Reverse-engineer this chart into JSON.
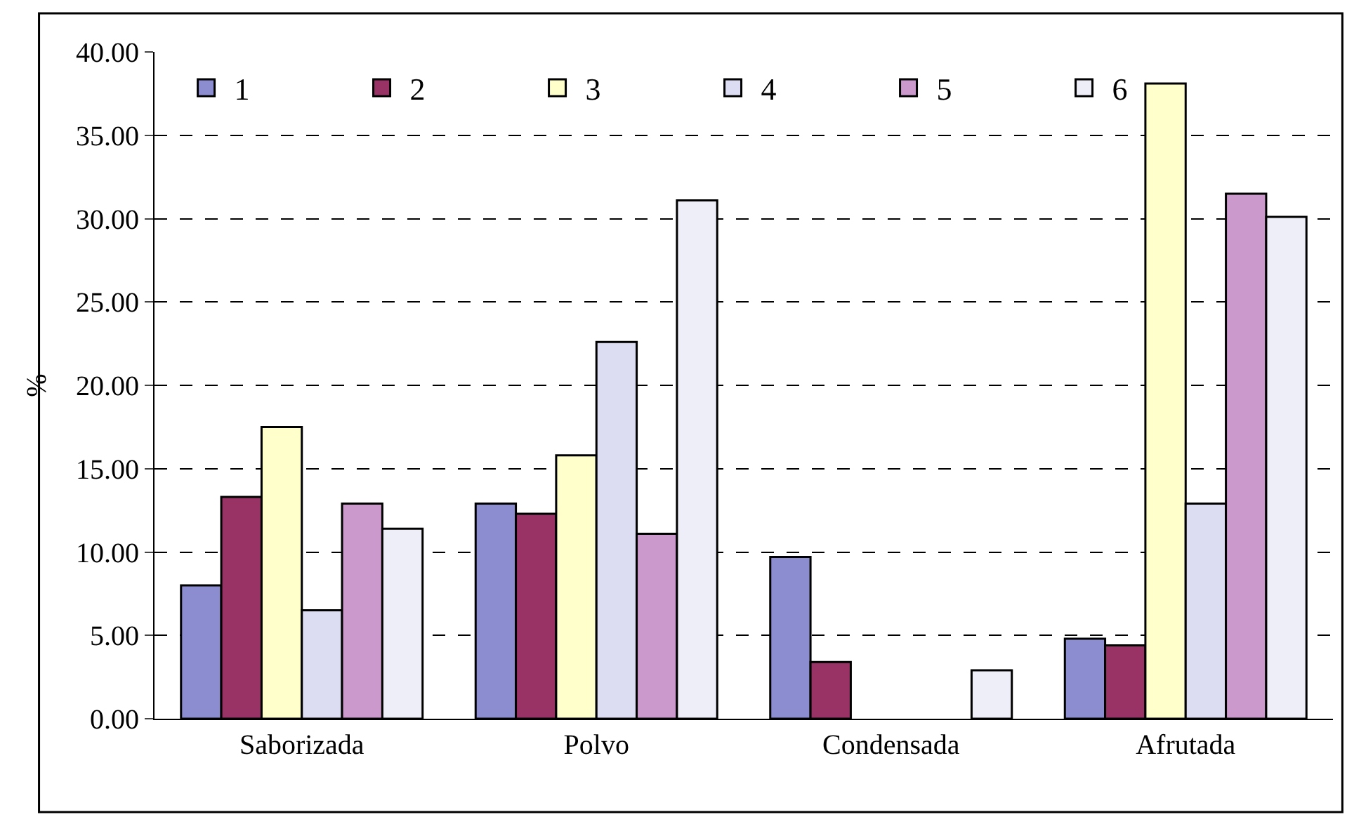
{
  "chart_data": {
    "type": "bar",
    "ylabel": "%",
    "categories": [
      "Saborizada",
      "Polvo",
      "Condensada",
      "Afrutada"
    ],
    "series": [
      {
        "name": "1",
        "color": "#8c8cd0",
        "values": [
          8.0,
          12.9,
          9.7,
          4.8
        ]
      },
      {
        "name": "2",
        "color": "#993366",
        "values": [
          13.3,
          12.3,
          3.4,
          4.4
        ]
      },
      {
        "name": "3",
        "color": "#ffffcc",
        "values": [
          17.5,
          15.8,
          null,
          38.1
        ]
      },
      {
        "name": "4",
        "color": "#dcdcf2",
        "values": [
          6.5,
          22.6,
          null,
          12.9
        ]
      },
      {
        "name": "5",
        "color": "#cc99cc",
        "values": [
          12.9,
          11.1,
          null,
          31.5
        ]
      },
      {
        "name": "6",
        "color": "#eeeef8",
        "values": [
          11.4,
          31.1,
          2.9,
          30.1
        ]
      }
    ],
    "ylim": [
      0,
      40
    ],
    "yticks": [
      {
        "value": 0,
        "label": "0.00"
      },
      {
        "value": 5,
        "label": "5.00"
      },
      {
        "value": 10,
        "label": "10.00"
      },
      {
        "value": 15,
        "label": "15.00"
      },
      {
        "value": 20,
        "label": "20.00"
      },
      {
        "value": 25,
        "label": "25.00"
      },
      {
        "value": 30,
        "label": "30.00"
      },
      {
        "value": 35,
        "label": "35.00"
      },
      {
        "value": 40,
        "label": "40.00"
      }
    ],
    "grid": "y",
    "legend": "top left"
  }
}
